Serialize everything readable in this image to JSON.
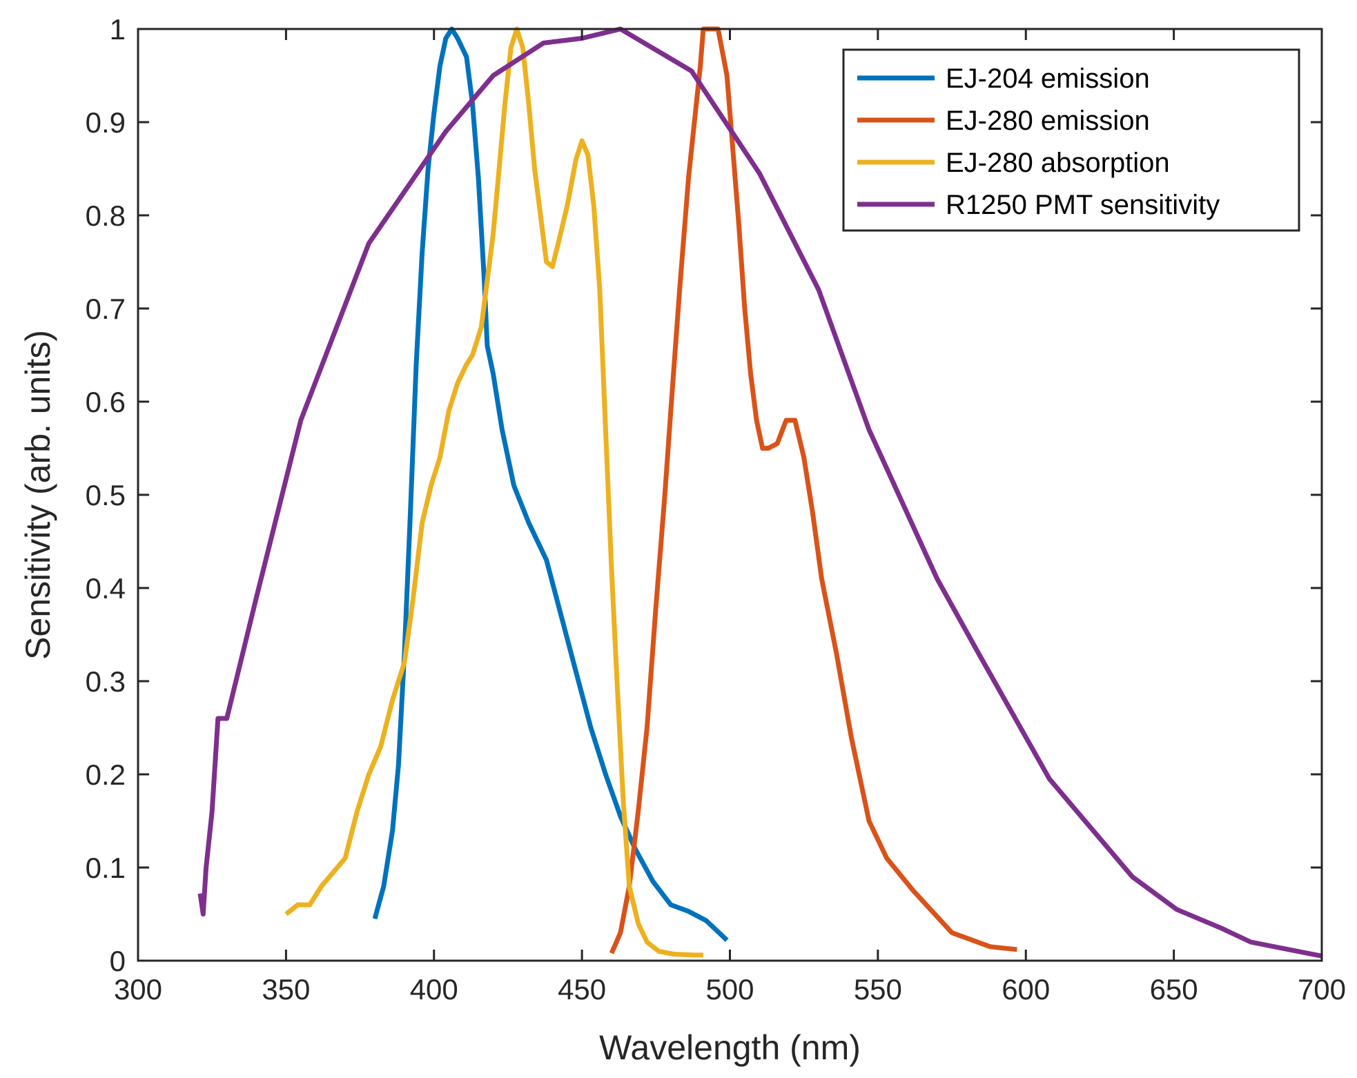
{
  "chart_data": {
    "type": "line",
    "title": "",
    "xlabel": "Wavelength (nm)",
    "ylabel": "Sensitivity (arb. units)",
    "xlim": [
      300,
      700
    ],
    "ylim": [
      0,
      1
    ],
    "xticks": [
      "300",
      "350",
      "400",
      "450",
      "500",
      "550",
      "600",
      "650",
      "700"
    ],
    "yticks": [
      "0",
      "0.1",
      "0.2",
      "0.3",
      "0.4",
      "0.5",
      "0.6",
      "0.7",
      "0.8",
      "0.9",
      "1"
    ],
    "legend_position": "top-right",
    "grid": false,
    "series": [
      {
        "name": "EJ-204 emission",
        "color": "#0072BD",
        "x": [
          380,
          383,
          386,
          388,
          390,
          392,
          394,
          396,
          398,
          400,
          402,
          404,
          406,
          408,
          411,
          413,
          415,
          417,
          418,
          420,
          423,
          427,
          432,
          438,
          443,
          448,
          453,
          458,
          463,
          468,
          474,
          480,
          486,
          492,
          499
        ],
        "y": [
          0.045,
          0.08,
          0.14,
          0.21,
          0.33,
          0.48,
          0.64,
          0.76,
          0.85,
          0.91,
          0.96,
          0.99,
          1.0,
          0.99,
          0.97,
          0.92,
          0.84,
          0.73,
          0.66,
          0.63,
          0.57,
          0.51,
          0.47,
          0.43,
          0.37,
          0.31,
          0.25,
          0.2,
          0.155,
          0.12,
          0.085,
          0.06,
          0.053,
          0.043,
          0.022
        ]
      },
      {
        "name": "EJ-280 emission",
        "color": "#D95319",
        "x": [
          460,
          463,
          466,
          469,
          472,
          475,
          478,
          480,
          483,
          486,
          488,
          490,
          491,
          493,
          496,
          499,
          501,
          503,
          505,
          507,
          509,
          511,
          513,
          516,
          519,
          522,
          525,
          528,
          531,
          536,
          541,
          547,
          553,
          562,
          575,
          588,
          597
        ],
        "y": [
          0.008,
          0.03,
          0.08,
          0.16,
          0.25,
          0.38,
          0.5,
          0.59,
          0.72,
          0.84,
          0.9,
          0.96,
          1.0,
          1.0,
          1.0,
          0.95,
          0.87,
          0.79,
          0.7,
          0.63,
          0.58,
          0.55,
          0.55,
          0.555,
          0.58,
          0.58,
          0.54,
          0.48,
          0.41,
          0.33,
          0.24,
          0.15,
          0.11,
          0.075,
          0.03,
          0.015,
          0.012
        ]
      },
      {
        "name": "EJ-280 absorption",
        "color": "#EDB120",
        "x": [
          350,
          354,
          358,
          362,
          366,
          370,
          374,
          378,
          382,
          386,
          390,
          393,
          396,
          399,
          402,
          405,
          408,
          411,
          413,
          416,
          418,
          420,
          422,
          424,
          426,
          428,
          430,
          432,
          434,
          436,
          438,
          440,
          442,
          445,
          448,
          450,
          452,
          454,
          456,
          458,
          460,
          462,
          464,
          466,
          469,
          472,
          476,
          481,
          488,
          491
        ],
        "y": [
          0.05,
          0.06,
          0.06,
          0.08,
          0.095,
          0.11,
          0.16,
          0.2,
          0.23,
          0.28,
          0.32,
          0.39,
          0.47,
          0.51,
          0.54,
          0.59,
          0.62,
          0.64,
          0.65,
          0.68,
          0.73,
          0.78,
          0.85,
          0.92,
          0.98,
          1.0,
          0.98,
          0.92,
          0.85,
          0.8,
          0.75,
          0.745,
          0.77,
          0.81,
          0.86,
          0.88,
          0.865,
          0.81,
          0.72,
          0.57,
          0.42,
          0.29,
          0.17,
          0.08,
          0.04,
          0.02,
          0.01,
          0.007,
          0.006,
          0.006
        ]
      },
      {
        "name": "R1250 PMT sensitivity",
        "color": "#7E2F8E",
        "x": [
          321,
          322,
          323,
          325,
          327,
          330,
          340,
          355,
          378,
          404,
          420,
          437,
          450,
          463,
          487,
          510,
          530,
          547,
          570,
          584,
          608,
          636,
          651,
          666,
          676,
          700
        ],
        "y": [
          0.072,
          0.05,
          0.1,
          0.16,
          0.26,
          0.26,
          0.39,
          0.58,
          0.77,
          0.89,
          0.95,
          0.985,
          0.99,
          1.0,
          0.955,
          0.845,
          0.72,
          0.57,
          0.41,
          0.33,
          0.195,
          0.09,
          0.055,
          0.035,
          0.02,
          0.005
        ]
      }
    ]
  }
}
